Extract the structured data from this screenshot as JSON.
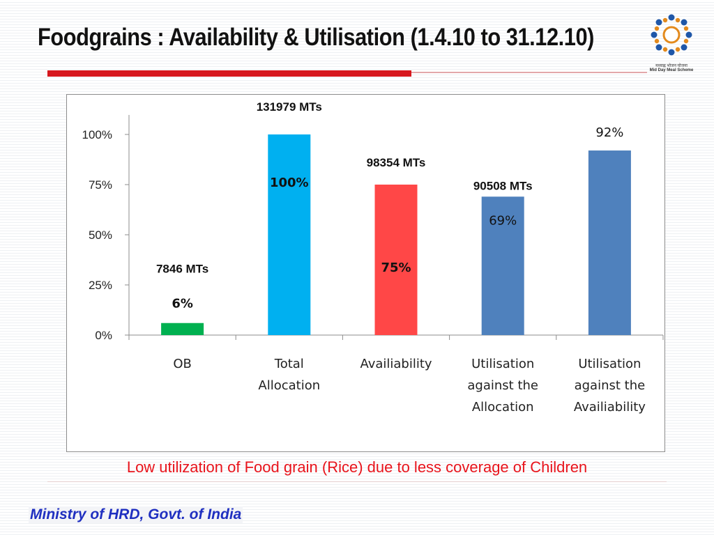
{
  "slide": {
    "title": "Foodgrains : Availability & Utilisation (1.4.10 to 31.12.10)",
    "caption": "Low utilization of Food grain (Rice) due to less coverage of  Children",
    "footer": "Ministry of HRD, Govt. of India",
    "logo": {
      "line1": "मध्याह्न भोजन योजना",
      "line2": "Mid Day Meal Scheme",
      "icon": "mdm-logo"
    }
  },
  "colors": {
    "title_rule": "#d7181e",
    "caption_text": "#e8131b",
    "footer_text": "#1f2fc0"
  },
  "chart_data": {
    "type": "bar",
    "title": "",
    "xlabel": "",
    "ylabel": "",
    "ylim": [
      0,
      1
    ],
    "yticks": [
      {
        "value": 0,
        "label": "0%"
      },
      {
        "value": 0.25,
        "label": "25%"
      },
      {
        "value": 0.5,
        "label": "50%"
      },
      {
        "value": 0.75,
        "label": "75%"
      },
      {
        "value": 1,
        "label": "100%"
      }
    ],
    "grid": false,
    "legend": "none",
    "categories": [
      [
        "OB"
      ],
      [
        "Total",
        "Allocation"
      ],
      [
        "Availiability"
      ],
      [
        "Utilisation",
        "against the",
        "Allocation"
      ],
      [
        "Utilisation",
        "against the",
        "Availiability"
      ]
    ],
    "values": [
      0.06,
      1.0,
      0.75,
      0.69,
      0.92
    ],
    "bar_colors": [
      "#00b050",
      "#00b0f0",
      "#ff4747",
      "#4f81bd",
      "#4f81bd"
    ],
    "data_labels": [
      {
        "text": "6%",
        "bold": true
      },
      {
        "text": "100%",
        "bold": true
      },
      {
        "text": "75%",
        "bold": true
      },
      {
        "text": "69%",
        "bold": false
      },
      {
        "text": "92%",
        "bold": false
      }
    ],
    "quantity_labels": [
      "7846 MTs",
      "131979 MTs",
      "98354 MTs",
      "90508 MTs",
      ""
    ]
  }
}
